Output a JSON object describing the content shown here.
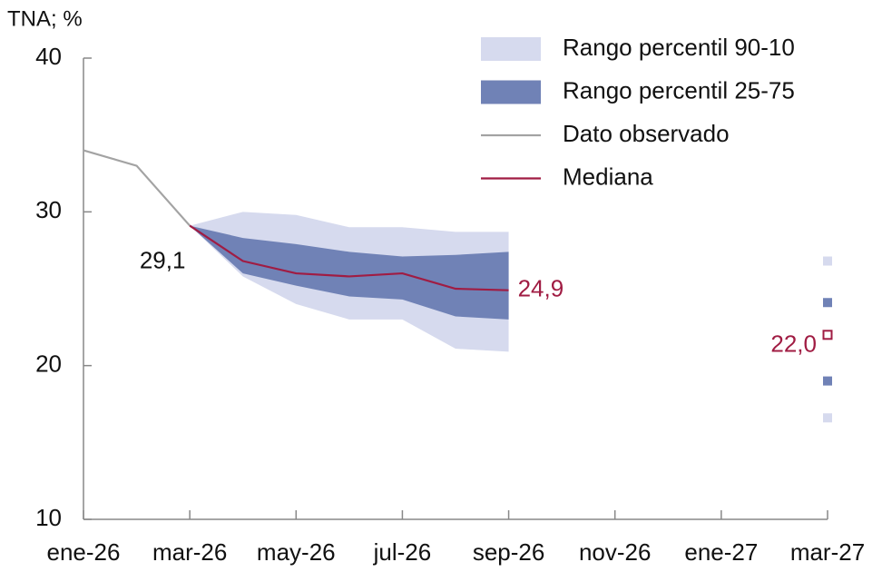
{
  "chart_data": {
    "type": "fan",
    "y_label": "TNA; %",
    "categories": [
      "ene-26",
      null,
      "mar-26",
      null,
      "may-26",
      null,
      "jul-26",
      null,
      "sep-26",
      null,
      "nov-26",
      null,
      "ene-27",
      null,
      "mar-27"
    ],
    "ylim": [
      10,
      40
    ],
    "yticks": [
      10,
      20,
      30,
      40
    ],
    "legend": "top-right",
    "series": [
      {
        "name": "Rango percentil 90-10",
        "kind": "band",
        "color": "#d6daee",
        "upper": [
          null,
          null,
          29.1,
          30.0,
          29.8,
          29.0,
          29.0,
          28.7,
          28.7,
          null,
          null,
          null,
          null,
          null,
          26.8
        ],
        "lower": [
          null,
          null,
          29.1,
          25.8,
          24.0,
          23.0,
          23.0,
          21.1,
          20.9,
          null,
          null,
          null,
          null,
          null,
          16.6
        ]
      },
      {
        "name": "Rango percentil 25-75",
        "kind": "band",
        "color": "#7082b6",
        "upper": [
          null,
          null,
          29.1,
          28.3,
          27.9,
          27.4,
          27.1,
          27.2,
          27.4,
          null,
          null,
          null,
          null,
          null,
          24.1
        ],
        "lower": [
          null,
          null,
          29.1,
          26.0,
          25.2,
          24.5,
          24.3,
          23.2,
          23.0,
          null,
          null,
          null,
          null,
          null,
          19.0
        ]
      },
      {
        "name": "Dato observado",
        "kind": "line",
        "color": "#a3a3a3",
        "values": [
          34.0,
          33.0,
          29.1,
          null,
          null,
          null,
          null,
          null,
          null,
          null,
          null,
          null,
          null,
          null,
          null
        ],
        "value_labels": [
          null,
          null,
          "29,1",
          null,
          null,
          null,
          null,
          null,
          null,
          null,
          null,
          null,
          null,
          null,
          null
        ]
      },
      {
        "name": "Mediana",
        "kind": "line",
        "color": "#a01c43",
        "values": [
          null,
          null,
          29.1,
          26.8,
          26.0,
          25.8,
          26.0,
          25.0,
          24.9,
          null,
          null,
          null,
          null,
          null,
          22.0
        ],
        "value_labels": [
          null,
          null,
          null,
          null,
          null,
          null,
          null,
          null,
          "24,9",
          null,
          null,
          null,
          null,
          null,
          "22,0"
        ]
      }
    ]
  }
}
